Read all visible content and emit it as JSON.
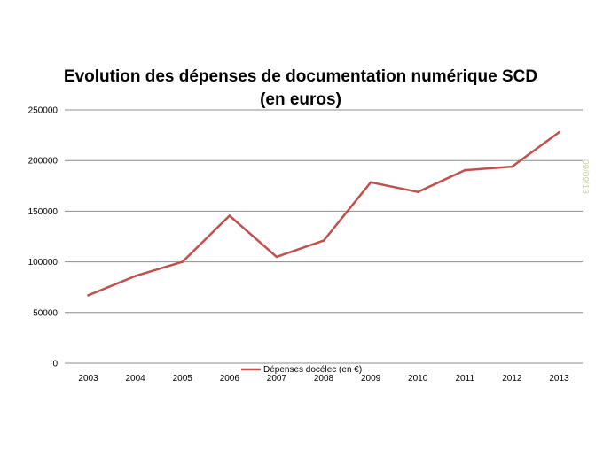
{
  "chart_data": {
    "type": "line",
    "title_line1": "Evolution des dépenses de documentation numérique  SCD",
    "title_line2": "(en euros)",
    "categories": [
      "2003",
      "2004",
      "2005",
      "2006",
      "2007",
      "2008",
      "2009",
      "2010",
      "2011",
      "2012",
      "2013"
    ],
    "series": [
      {
        "name": "Dépenses docélec (en €)",
        "values": [
          67000,
          86000,
          100000,
          145500,
          105000,
          121000,
          178500,
          169000,
          190500,
          194000,
          228000
        ],
        "color": "#c0504d"
      }
    ],
    "ylim": [
      0,
      250000
    ],
    "yticks": [
      "0",
      "50000",
      "100000",
      "150000",
      "200000",
      "250000"
    ],
    "grid": "horizontal",
    "legend_position": "bottom",
    "gridline_color": "#8c8c8c"
  },
  "side_date": "09/09/13"
}
